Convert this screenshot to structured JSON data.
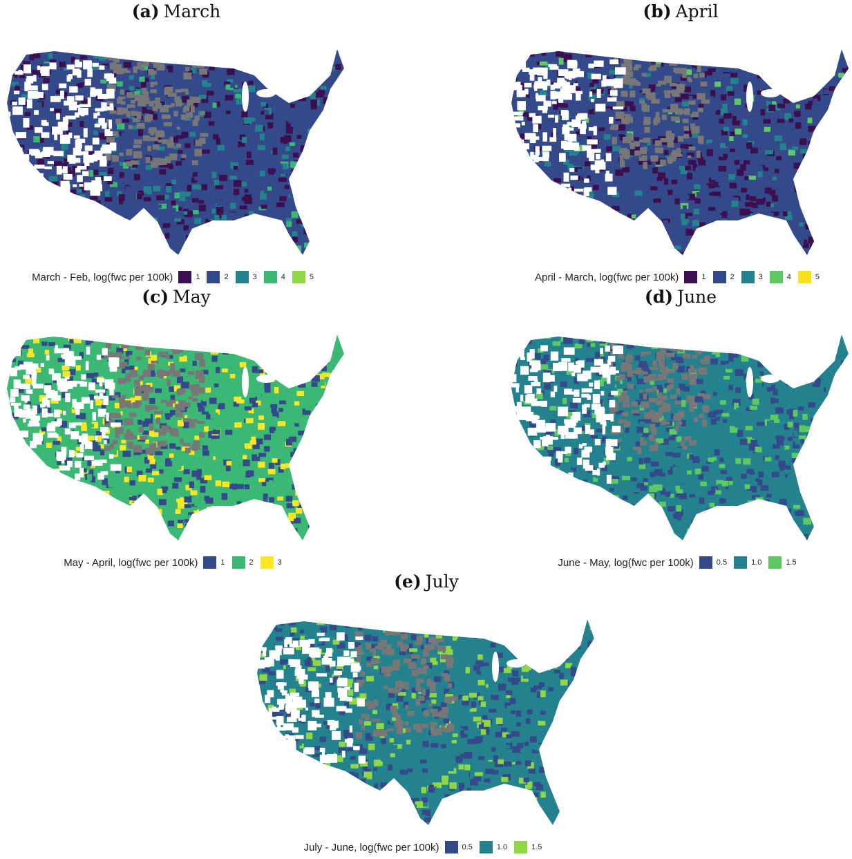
{
  "panels": [
    {
      "label": "(a)",
      "title": "March",
      "legend": {
        "title": "March - Feb, log(fwc per 100k)",
        "items": [
          {
            "label": "1",
            "color": "#3b0f4f"
          },
          {
            "label": "2",
            "color": "#33498a"
          },
          {
            "label": "3",
            "color": "#23828e"
          },
          {
            "label": "4",
            "color": "#3bb874"
          },
          {
            "label": "5",
            "color": "#8fd744"
          }
        ]
      }
    },
    {
      "label": "(b)",
      "title": "April",
      "legend": {
        "title": "April - March, log(fwc per 100k)",
        "items": [
          {
            "label": "1",
            "color": "#3b0f4f"
          },
          {
            "label": "2",
            "color": "#33498a"
          },
          {
            "label": "3",
            "color": "#23828e"
          },
          {
            "label": "4",
            "color": "#5ec962"
          },
          {
            "label": "5",
            "color": "#f5e11e"
          }
        ]
      }
    },
    {
      "label": "(c)",
      "title": "May",
      "legend": {
        "title": "May - April, log(fwc per 100k)",
        "items": [
          {
            "label": "1",
            "color": "#33498a"
          },
          {
            "label": "2",
            "color": "#3bb874"
          },
          {
            "label": "3",
            "color": "#fde725"
          }
        ]
      }
    },
    {
      "label": "(d)",
      "title": "June",
      "legend": {
        "title": "June - May, log(fwc per 100k)",
        "items": [
          {
            "label": "0.5",
            "color": "#33498a"
          },
          {
            "label": "1.0",
            "color": "#23828e"
          },
          {
            "label": "1.5",
            "color": "#5ec962"
          }
        ]
      }
    },
    {
      "label": "(e)",
      "title": "July",
      "legend": {
        "title": "July - June, log(fwc per 100k)",
        "items": [
          {
            "label": "0.5",
            "color": "#33498a"
          },
          {
            "label": "1.0",
            "color": "#23828e"
          },
          {
            "label": "1.5",
            "color": "#8fd744"
          }
        ]
      }
    }
  ]
}
